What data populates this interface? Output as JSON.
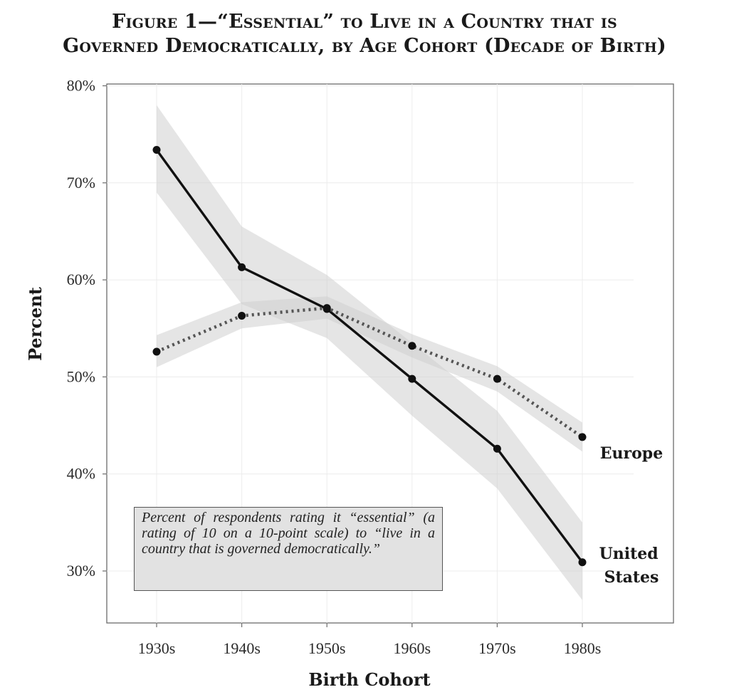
{
  "figure": {
    "title_line1": "Figure 1—“Essential” to Live in a Country that is",
    "title_line2": "Governed Democratically, by Age Cohort (Decade of Birth)"
  },
  "note": "Percent of respondents rating it “essential” (a rating of 10 on a 10-point scale) to “live in a country that is governed democratically.”",
  "chart_data": {
    "type": "line",
    "title": "Figure 1—“Essential” to Live in a Country that is Governed Democratically, by Age Cohort (Decade of Birth)",
    "xlabel": "Birth Cohort",
    "ylabel": "Percent",
    "categories": [
      "1930s",
      "1940s",
      "1950s",
      "1960s",
      "1970s",
      "1980s"
    ],
    "ylim": [
      25,
      80
    ],
    "yticks": [
      30,
      40,
      50,
      60,
      70,
      80
    ],
    "ytick_labels": [
      "30%",
      "40%",
      "50%",
      "60%",
      "70%",
      "80%"
    ],
    "grid": true,
    "series": [
      {
        "name": "United States",
        "values": [
          73.4,
          61.3,
          57.0,
          49.8,
          42.6,
          30.9
        ],
        "ci_lower": [
          69.0,
          57.5,
          54.0,
          46.0,
          38.5,
          27.0
        ],
        "ci_upper": [
          78.0,
          65.5,
          60.5,
          53.5,
          46.5,
          35.0
        ],
        "style": "solid",
        "color": "#111111"
      },
      {
        "name": "Europe",
        "values": [
          52.6,
          56.3,
          57.1,
          53.2,
          49.8,
          43.8
        ],
        "ci_lower": [
          51.0,
          55.0,
          56.0,
          52.0,
          48.5,
          42.3
        ],
        "ci_upper": [
          54.3,
          57.7,
          58.3,
          54.4,
          51.1,
          45.3
        ],
        "style": "dotted",
        "color": "#555555"
      }
    ]
  }
}
